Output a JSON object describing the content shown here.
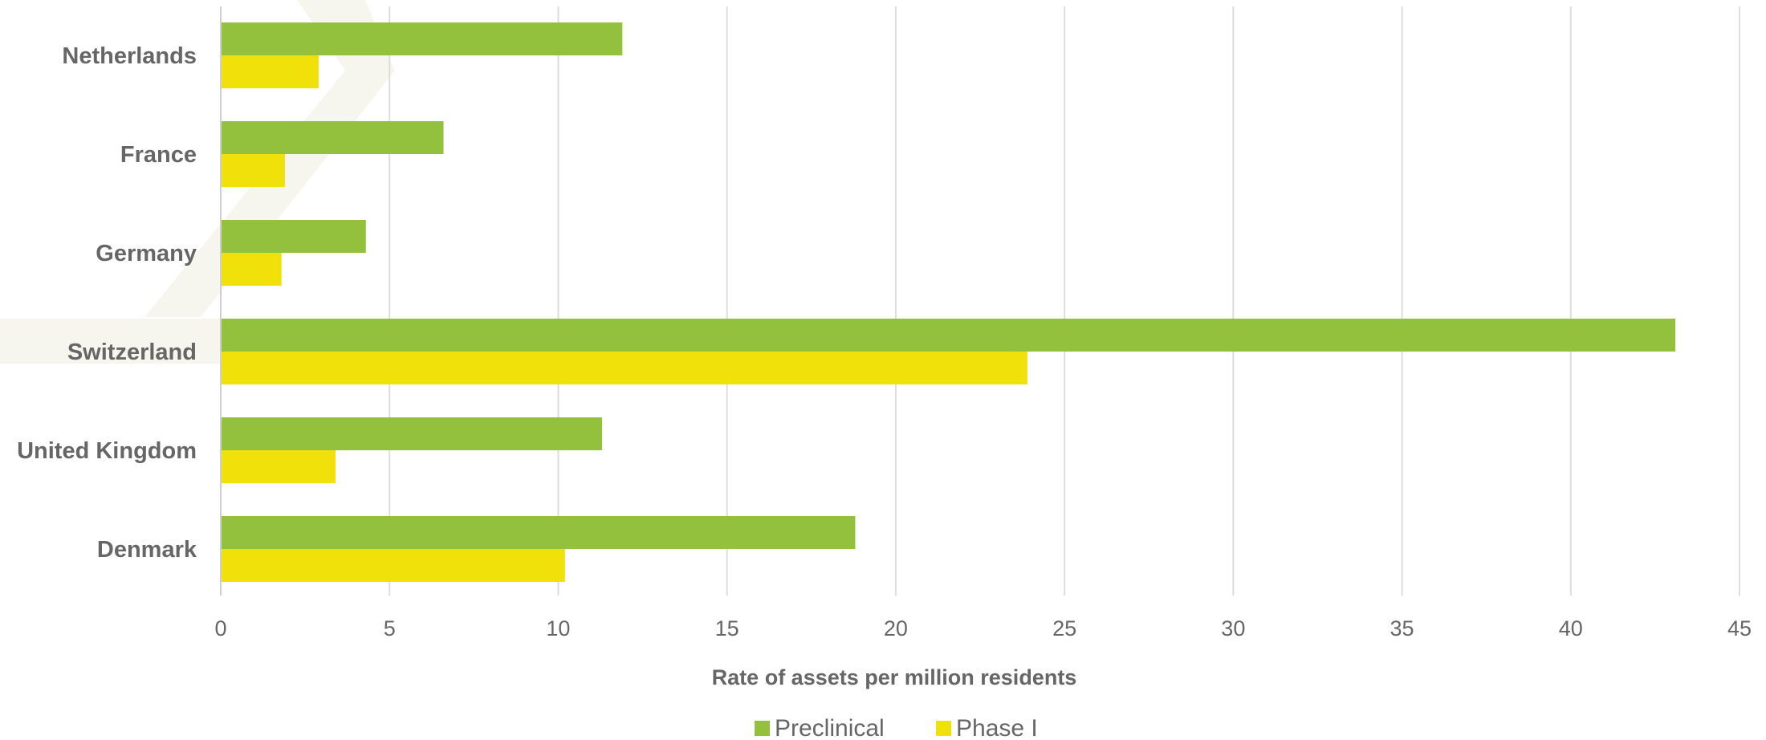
{
  "chart_data": {
    "type": "bar",
    "orientation": "horizontal",
    "categories": [
      "Netherlands",
      "France",
      "Germany",
      "Switzerland",
      "United Kingdom",
      "Denmark"
    ],
    "series": [
      {
        "name": "Preclinical",
        "color": "#94c13d",
        "values": [
          11.9,
          6.6,
          4.3,
          43.1,
          11.3,
          18.8
        ]
      },
      {
        "name": "Phase I",
        "color": "#f0e10a",
        "values": [
          2.9,
          1.9,
          1.8,
          23.9,
          3.4,
          10.2
        ]
      }
    ],
    "xlabel": "Rate of assets per million residents",
    "xlim": [
      0,
      45
    ],
    "xticks": [
      "0",
      "5",
      "10",
      "15",
      "20",
      "25",
      "30",
      "35",
      "40",
      "45"
    ],
    "grid": true,
    "legend_position": "bottom"
  },
  "watermark": {
    "color": "#f6f6ef"
  }
}
